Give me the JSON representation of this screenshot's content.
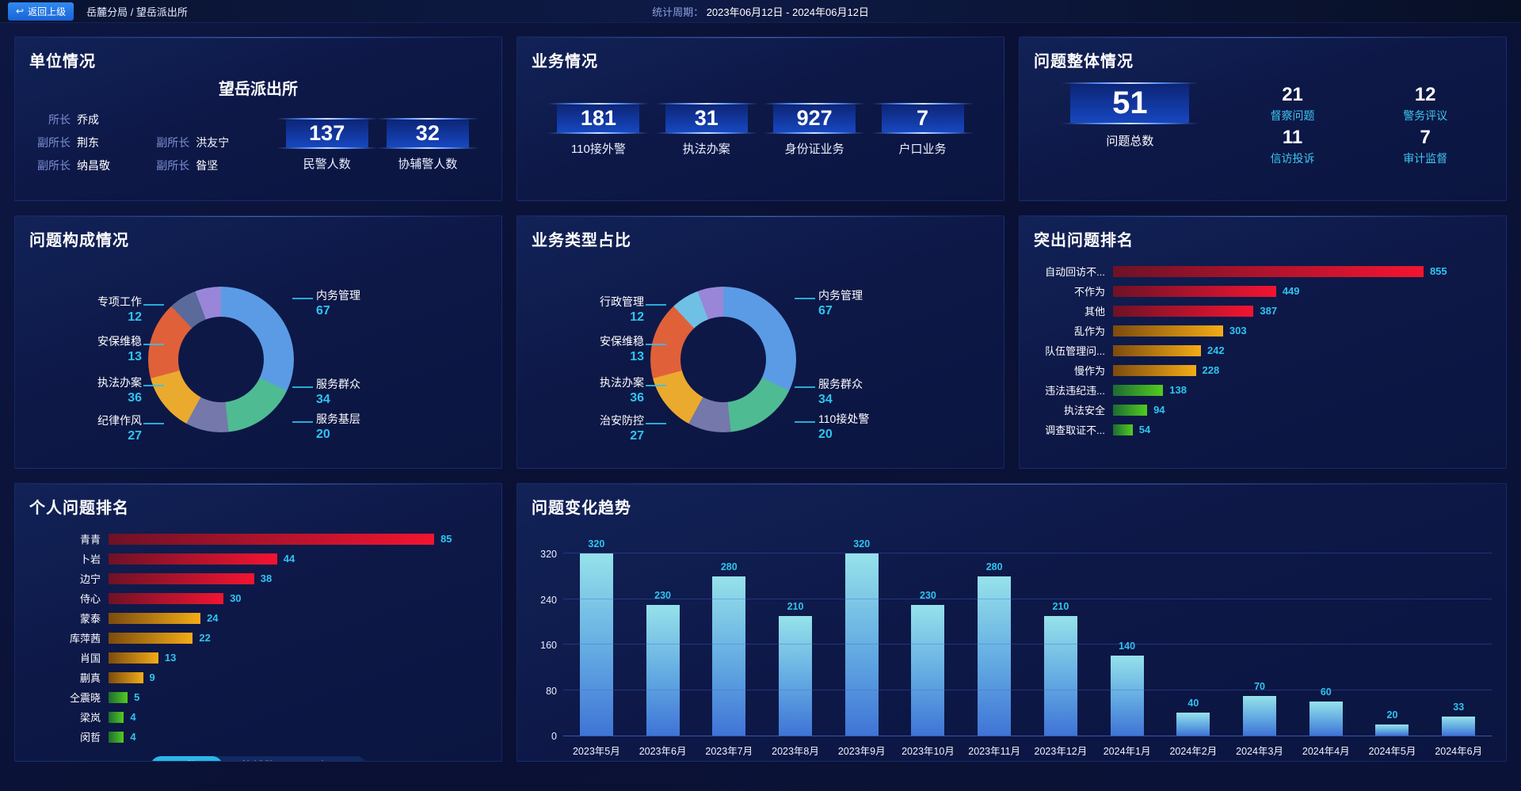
{
  "top_bar": {
    "back_button": "返回上级",
    "breadcrumb": "岳麓分局 / 望岳派出所",
    "period_label": "统计周期：",
    "period_value": "2023年06月12日 - 2024年06月12日"
  },
  "colors": {
    "accent_cyan": "#2fc4ef",
    "label_cyan": "#3ec6f0",
    "plate_blue": "#1747c0",
    "tab_active": "#29b7e8",
    "bar_palette": {
      "red": [
        "#6e1226",
        "#f31431"
      ],
      "gold": [
        "#7c4b0e",
        "#f4ac16"
      ],
      "green": [
        "#1d6b33",
        "#52cc1f"
      ]
    }
  },
  "unit_panel": {
    "title": "单位情况",
    "station_name": "望岳派出所",
    "leaders": [
      {
        "role": "所长",
        "name": "乔成"
      },
      {
        "role": "副所长",
        "name": "荆东"
      },
      {
        "role": "副所长",
        "name": "洪友宁"
      },
      {
        "role": "副所长",
        "name": "纳昌敬"
      },
      {
        "role": "副所长",
        "name": "昝坚"
      }
    ],
    "stats": [
      {
        "value": "137",
        "label": "民警人数"
      },
      {
        "value": "32",
        "label": "协辅警人数"
      }
    ]
  },
  "business_panel": {
    "title": "业务情况",
    "stats": [
      {
        "value": "181",
        "label": "110接外警"
      },
      {
        "value": "31",
        "label": "执法办案"
      },
      {
        "value": "927",
        "label": "身份证业务"
      },
      {
        "value": "7",
        "label": "户口业务"
      }
    ]
  },
  "problem_overview_panel": {
    "title": "问题整体情况",
    "total": {
      "value": "51",
      "label": "问题总数"
    },
    "stats": [
      {
        "value": "21",
        "label": "督察问题"
      },
      {
        "value": "12",
        "label": "警务评议"
      },
      {
        "value": "11",
        "label": "信访投诉"
      },
      {
        "value": "7",
        "label": "审计监督"
      }
    ]
  },
  "personal_panel": {
    "tabs": [
      {
        "label": "民警",
        "active": true
      },
      {
        "label": "协辅警",
        "active": false
      },
      {
        "label": "领导",
        "active": false
      }
    ]
  },
  "chart_data": [
    {
      "type": "pie",
      "title": "问题构成情况",
      "slices": [
        {
          "label": "内务管理",
          "value": 67,
          "color": "#5b9be5",
          "side": "right"
        },
        {
          "label": "服务群众",
          "value": 34,
          "color": "#4fbb92",
          "side": "right"
        },
        {
          "label": "服务基层",
          "value": 20,
          "color": "#7478aa",
          "side": "right"
        },
        {
          "label": "纪律作风",
          "value": 27,
          "color": "#eaaa2e",
          "side": "left"
        },
        {
          "label": "执法办案",
          "value": 36,
          "color": "#e0603a",
          "side": "left"
        },
        {
          "label": "安保维稳",
          "value": 13,
          "color": "#5a6a9b",
          "side": "left"
        },
        {
          "label": "专项工作",
          "value": 12,
          "color": "#9a86d8",
          "side": "left"
        }
      ]
    },
    {
      "type": "pie",
      "title": "业务类型占比",
      "slices": [
        {
          "label": "内务管理",
          "value": 67,
          "color": "#5b9be5",
          "side": "right"
        },
        {
          "label": "服务群众",
          "value": 34,
          "color": "#4fbb92",
          "side": "right"
        },
        {
          "label": "110接处警",
          "value": 20,
          "color": "#7478aa",
          "side": "right"
        },
        {
          "label": "治安防控",
          "value": 27,
          "color": "#eaaa2e",
          "side": "left"
        },
        {
          "label": "执法办案",
          "value": 36,
          "color": "#e0603a",
          "side": "left"
        },
        {
          "label": "安保维稳",
          "value": 13,
          "color": "#6ec1e4",
          "side": "left"
        },
        {
          "label": "行政管理",
          "value": 12,
          "color": "#9a86d8",
          "side": "left"
        }
      ]
    },
    {
      "type": "bar",
      "orientation": "horizontal",
      "title": "突出问题排名",
      "categories": [
        "自动回访不...",
        "不作为",
        "其他",
        "乱作为",
        "队伍管理问...",
        "慢作为",
        "违法违纪违...",
        "执法安全",
        "调查取证不..."
      ],
      "values": [
        855,
        449,
        387,
        303,
        242,
        228,
        138,
        94,
        54
      ],
      "color_groups": [
        "red",
        "red",
        "red",
        "gold",
        "gold",
        "gold",
        "green",
        "green",
        "green"
      ],
      "xmax": 855
    },
    {
      "type": "bar",
      "orientation": "horizontal",
      "title": "个人问题排名",
      "categories": [
        "青青",
        "卜岩",
        "边宁",
        "侍心",
        "蒙泰",
        "库萍茜",
        "肖国",
        "蒯真",
        "仝震晓",
        "梁岚",
        "闵哲"
      ],
      "values": [
        85,
        44,
        38,
        30,
        24,
        22,
        13,
        9,
        5,
        4,
        4
      ],
      "color_groups": [
        "red",
        "red",
        "red",
        "red",
        "gold",
        "gold",
        "gold",
        "gold",
        "green",
        "green",
        "green"
      ],
      "xmax": 85
    },
    {
      "type": "bar",
      "orientation": "vertical",
      "title": "问题变化趋势",
      "categories": [
        "2023年5月",
        "2023年6月",
        "2023年7月",
        "2023年8月",
        "2023年9月",
        "2023年10月",
        "2023年11月",
        "2023年12月",
        "2024年1月",
        "2024年2月",
        "2024年3月",
        "2024年4月",
        "2024年5月",
        "2024年6月"
      ],
      "values": [
        320,
        230,
        280,
        210,
        320,
        230,
        280,
        210,
        140,
        40,
        70,
        60,
        20,
        33
      ],
      "ylim": [
        0,
        320
      ],
      "yticks": [
        0,
        80,
        160,
        240,
        320
      ]
    }
  ]
}
